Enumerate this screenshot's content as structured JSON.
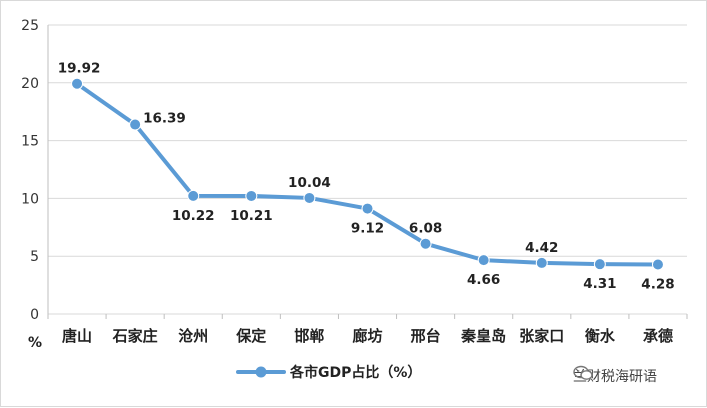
{
  "chart_data": {
    "type": "line",
    "categories": [
      "唐山",
      "石家庄",
      "沧州",
      "保定",
      "邯郸",
      "廊坊",
      "邢台",
      "秦皇岛",
      "张家口",
      "衡水",
      "承德"
    ],
    "series": [
      {
        "name": "各市GDP占比（%）",
        "values": [
          19.92,
          16.39,
          10.22,
          10.21,
          10.04,
          9.12,
          6.08,
          4.66,
          4.42,
          4.31,
          4.28
        ]
      }
    ],
    "data_labels": [
      "19.92",
      "16.39",
      "10.22",
      "10.21",
      "10.04",
      "9.12",
      "6.08",
      "4.66",
      "4.42",
      "4.31",
      "4.28"
    ],
    "yticks": [
      "0",
      "5",
      "10",
      "15",
      "20",
      "25"
    ],
    "ylim": [
      0,
      25
    ],
    "y_unit": "%",
    "grid": "horizontal",
    "legend_position": "bottom-center",
    "color": "#5b9bd5"
  },
  "watermark": {
    "text": "兰财税海研语",
    "icon": "wechat-icon"
  }
}
